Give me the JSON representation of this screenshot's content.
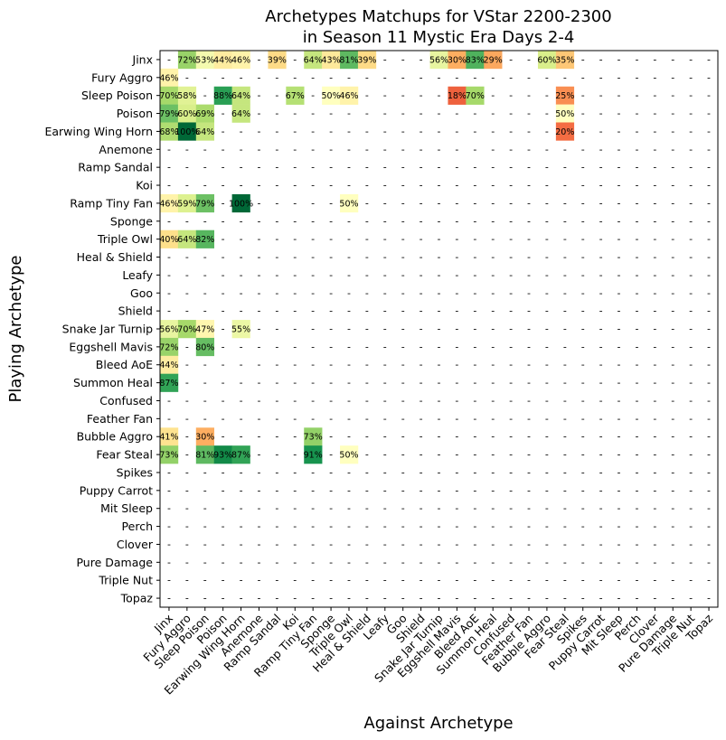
{
  "chart_data": {
    "type": "heatmap",
    "title": "Archetypes Matchups for VStar 2200-2300",
    "subtitle": "in Season 11 Mystic Era Days 2-4",
    "xlabel": "Against Archetype",
    "ylabel": "Playing Archetype",
    "archetypes": [
      "Jinx",
      "Fury Aggro",
      "Sleep Poison",
      "Poison",
      "Earwing Wing Horn",
      "Anemone",
      "Ramp Sandal",
      "Koi",
      "Ramp Tiny Fan",
      "Sponge",
      "Triple Owl",
      "Heal & Shield",
      "Leafy",
      "Goo",
      "Shield",
      "Snake Jar Turnip",
      "Eggshell Mavis",
      "Bleed AoE",
      "Summon Heal",
      "Confused",
      "Feather Fan",
      "Bubble Aggro",
      "Fear Steal",
      "Spikes",
      "Puppy Carrot",
      "Mit Sleep",
      "Perch",
      "Clover",
      "Pure Damage",
      "Triple Nut",
      "Topaz"
    ],
    "missing_marker": "-",
    "value_range": [
      0,
      100
    ],
    "colormap": "RdYlGn",
    "cells": [
      {
        "row": "Jinx",
        "col": "Fury Aggro",
        "value": 72
      },
      {
        "row": "Jinx",
        "col": "Sleep Poison",
        "value": 53
      },
      {
        "row": "Jinx",
        "col": "Poison",
        "value": 44
      },
      {
        "row": "Jinx",
        "col": "Earwing Wing Horn",
        "value": 46
      },
      {
        "row": "Jinx",
        "col": "Ramp Sandal",
        "value": 39
      },
      {
        "row": "Jinx",
        "col": "Ramp Tiny Fan",
        "value": 64
      },
      {
        "row": "Jinx",
        "col": "Sponge",
        "value": 43
      },
      {
        "row": "Jinx",
        "col": "Triple Owl",
        "value": 81
      },
      {
        "row": "Jinx",
        "col": "Heal & Shield",
        "value": 39
      },
      {
        "row": "Jinx",
        "col": "Snake Jar Turnip",
        "value": 56
      },
      {
        "row": "Jinx",
        "col": "Eggshell Mavis",
        "value": 30
      },
      {
        "row": "Jinx",
        "col": "Bleed AoE",
        "value": 83
      },
      {
        "row": "Jinx",
        "col": "Summon Heal",
        "value": 29
      },
      {
        "row": "Jinx",
        "col": "Bubble Aggro",
        "value": 60
      },
      {
        "row": "Jinx",
        "col": "Fear Steal",
        "value": 35
      },
      {
        "row": "Fury Aggro",
        "col": "Jinx",
        "value": 46
      },
      {
        "row": "Sleep Poison",
        "col": "Jinx",
        "value": 70
      },
      {
        "row": "Sleep Poison",
        "col": "Fury Aggro",
        "value": 58
      },
      {
        "row": "Sleep Poison",
        "col": "Poison",
        "value": 88
      },
      {
        "row": "Sleep Poison",
        "col": "Earwing Wing Horn",
        "value": 64
      },
      {
        "row": "Sleep Poison",
        "col": "Koi",
        "value": 67
      },
      {
        "row": "Sleep Poison",
        "col": "Sponge",
        "value": 50
      },
      {
        "row": "Sleep Poison",
        "col": "Triple Owl",
        "value": 46
      },
      {
        "row": "Sleep Poison",
        "col": "Eggshell Mavis",
        "value": 18
      },
      {
        "row": "Sleep Poison",
        "col": "Bleed AoE",
        "value": 70
      },
      {
        "row": "Sleep Poison",
        "col": "Fear Steal",
        "value": 25
      },
      {
        "row": "Poison",
        "col": "Jinx",
        "value": 79
      },
      {
        "row": "Poison",
        "col": "Fury Aggro",
        "value": 60
      },
      {
        "row": "Poison",
        "col": "Sleep Poison",
        "value": 69
      },
      {
        "row": "Poison",
        "col": "Earwing Wing Horn",
        "value": 64
      },
      {
        "row": "Poison",
        "col": "Fear Steal",
        "value": 50
      },
      {
        "row": "Earwing Wing Horn",
        "col": "Jinx",
        "value": 68
      },
      {
        "row": "Earwing Wing Horn",
        "col": "Fury Aggro",
        "value": 100
      },
      {
        "row": "Earwing Wing Horn",
        "col": "Sleep Poison",
        "value": 64
      },
      {
        "row": "Earwing Wing Horn",
        "col": "Fear Steal",
        "value": 20
      },
      {
        "row": "Ramp Tiny Fan",
        "col": "Jinx",
        "value": 46
      },
      {
        "row": "Ramp Tiny Fan",
        "col": "Fury Aggro",
        "value": 59
      },
      {
        "row": "Ramp Tiny Fan",
        "col": "Sleep Poison",
        "value": 79
      },
      {
        "row": "Ramp Tiny Fan",
        "col": "Earwing Wing Horn",
        "value": 100
      },
      {
        "row": "Ramp Tiny Fan",
        "col": "Triple Owl",
        "value": 50
      },
      {
        "row": "Triple Owl",
        "col": "Jinx",
        "value": 40
      },
      {
        "row": "Triple Owl",
        "col": "Fury Aggro",
        "value": 64
      },
      {
        "row": "Triple Owl",
        "col": "Sleep Poison",
        "value": 82
      },
      {
        "row": "Snake Jar Turnip",
        "col": "Jinx",
        "value": 56
      },
      {
        "row": "Snake Jar Turnip",
        "col": "Fury Aggro",
        "value": 70
      },
      {
        "row": "Snake Jar Turnip",
        "col": "Sleep Poison",
        "value": 47
      },
      {
        "row": "Snake Jar Turnip",
        "col": "Earwing Wing Horn",
        "value": 55
      },
      {
        "row": "Eggshell Mavis",
        "col": "Jinx",
        "value": 72
      },
      {
        "row": "Eggshell Mavis",
        "col": "Sleep Poison",
        "value": 80
      },
      {
        "row": "Bleed AoE",
        "col": "Jinx",
        "value": 44
      },
      {
        "row": "Summon Heal",
        "col": "Jinx",
        "value": 87
      },
      {
        "row": "Bubble Aggro",
        "col": "Jinx",
        "value": 41
      },
      {
        "row": "Bubble Aggro",
        "col": "Sleep Poison",
        "value": 30
      },
      {
        "row": "Bubble Aggro",
        "col": "Ramp Tiny Fan",
        "value": 73
      },
      {
        "row": "Fear Steal",
        "col": "Jinx",
        "value": 73
      },
      {
        "row": "Fear Steal",
        "col": "Sleep Poison",
        "value": 81
      },
      {
        "row": "Fear Steal",
        "col": "Poison",
        "value": 93
      },
      {
        "row": "Fear Steal",
        "col": "Earwing Wing Horn",
        "value": 87
      },
      {
        "row": "Fear Steal",
        "col": "Ramp Tiny Fan",
        "value": 91
      },
      {
        "row": "Fear Steal",
        "col": "Triple Owl",
        "value": 50
      }
    ]
  }
}
